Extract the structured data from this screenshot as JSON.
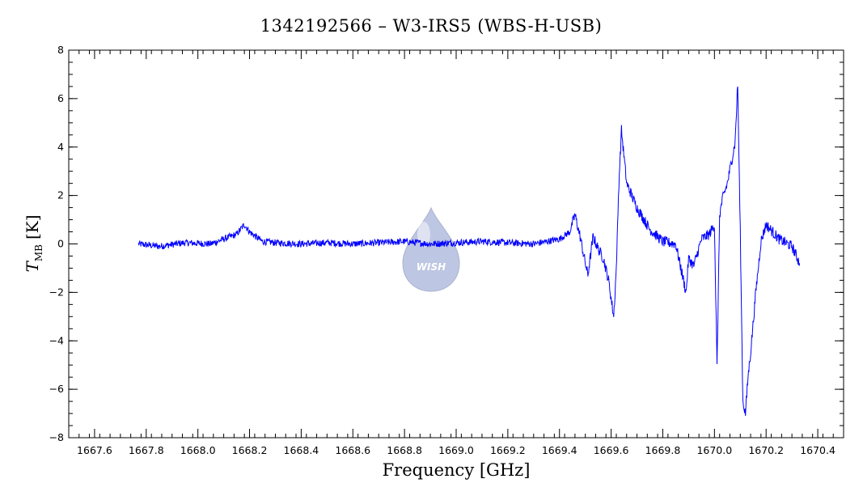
{
  "chart_data": {
    "type": "line",
    "title": "1342192566 – W3-IRS5 (WBS-H-USB)",
    "xlabel": "Frequency [GHz]",
    "ylabel": {
      "symbol": "T",
      "subscript": "MB",
      "unit": "[K]"
    },
    "xlim": [
      1667.5,
      1670.5
    ],
    "ylim": [
      -8,
      8
    ],
    "xticks": [
      1667.6,
      1667.8,
      1668.0,
      1668.2,
      1668.4,
      1668.6,
      1668.8,
      1669.0,
      1669.2,
      1669.4,
      1669.6,
      1669.8,
      1670.0,
      1670.2,
      1670.4
    ],
    "yticks": [
      -8,
      -6,
      -4,
      -2,
      0,
      2,
      4,
      6,
      8
    ],
    "grid": false,
    "line_color": "#0000ff",
    "logo": {
      "text": "WISH",
      "color": "#8899cc"
    },
    "series": [
      {
        "x": [
          1667.77,
          1667.85,
          1667.95,
          1668.05,
          1668.1,
          1668.15,
          1668.18,
          1668.2,
          1668.25,
          1668.3,
          1668.4,
          1668.5,
          1668.6,
          1668.7,
          1668.8,
          1668.9,
          1669.0,
          1669.1,
          1669.2,
          1669.3,
          1669.4,
          1669.44,
          1669.46,
          1669.48,
          1669.5,
          1669.51,
          1669.53,
          1669.55,
          1669.57,
          1669.59,
          1669.61,
          1669.62,
          1669.63,
          1669.64,
          1669.66,
          1669.7,
          1669.75,
          1669.8,
          1669.85,
          1669.89,
          1669.9,
          1669.92,
          1669.95,
          1669.98,
          1670.0,
          1670.01,
          1670.02,
          1670.03,
          1670.05,
          1670.08,
          1670.09,
          1670.1,
          1670.11,
          1670.12,
          1670.13,
          1670.14,
          1670.16,
          1670.18,
          1670.2,
          1670.25,
          1670.3,
          1670.33
        ],
        "y": [
          0.0,
          -0.1,
          0.05,
          0.0,
          0.2,
          0.4,
          0.8,
          0.5,
          0.1,
          0.05,
          0.0,
          0.05,
          0.0,
          0.05,
          0.1,
          0.0,
          0.05,
          0.1,
          0.05,
          0.0,
          0.2,
          0.5,
          1.2,
          0.3,
          -0.8,
          -1.3,
          0.3,
          -0.2,
          -0.6,
          -1.5,
          -3.0,
          -1.0,
          2.5,
          4.7,
          2.5,
          1.5,
          0.6,
          0.1,
          0.0,
          -2.0,
          -0.6,
          -0.9,
          0.2,
          0.4,
          0.8,
          -5.1,
          1.2,
          1.8,
          2.5,
          4.2,
          6.6,
          0.5,
          -6.5,
          -7.0,
          -5.5,
          -4.5,
          -2.0,
          0.1,
          0.8,
          0.2,
          -0.1,
          -0.8
        ]
      }
    ]
  }
}
